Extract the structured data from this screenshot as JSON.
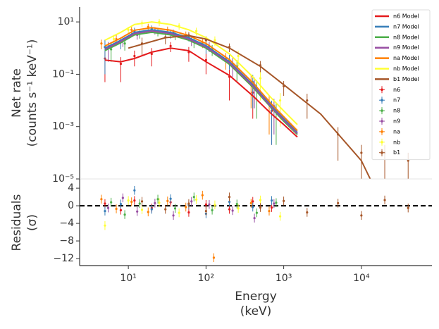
{
  "chart_data": [
    {
      "type": "scatter",
      "ylabel": [
        "Net rate",
        "(counts s⁻¹ keV⁻¹)"
      ],
      "xscale": "log",
      "yscale": "log",
      "xlim": [
        2.36,
        81000
      ],
      "ylim": [
        1e-05,
        37
      ],
      "yticks": [
        {
          "value": 1e-05,
          "label": "10⁻⁵"
        },
        {
          "value": 0.001,
          "label": "10⁻³"
        },
        {
          "value": 0.1,
          "label": "10⁻¹"
        },
        {
          "value": 10,
          "label": "10¹"
        }
      ],
      "legend": "upper right",
      "models": [
        {
          "name": "n6 Model",
          "color": "#e41a1c",
          "x": [
            5,
            8,
            12,
            20,
            35,
            60,
            100,
            200,
            400,
            700,
            1000,
            1500
          ],
          "values": [
            0.35,
            0.3,
            0.4,
            0.7,
            1.0,
            0.8,
            0.3,
            0.09,
            0.015,
            0.003,
            0.0012,
            0.0004
          ]
        },
        {
          "name": "n7 Model",
          "color": "#377eb8",
          "x": [
            5,
            8,
            12,
            20,
            35,
            60,
            100,
            200,
            400,
            700,
            1000,
            1500
          ],
          "values": [
            1,
            2,
            4,
            5,
            4,
            2.5,
            1.25,
            0.3,
            0.04,
            0.006,
            0.002,
            0.0006
          ]
        },
        {
          "name": "n8 Model",
          "color": "#4daf4a",
          "x": [
            5,
            8,
            12,
            20,
            35,
            60,
            100,
            200,
            400,
            700,
            1000,
            1500
          ],
          "values": [
            0.8,
            1.6,
            3.2,
            4,
            3.2,
            2,
            1,
            0.24,
            0.032,
            0.005,
            0.0016,
            0.0005
          ]
        },
        {
          "name": "n9 Model",
          "color": "#984ea3",
          "x": [
            5,
            8,
            12,
            20,
            35,
            60,
            100,
            200,
            400,
            700,
            1000,
            1500
          ],
          "values": [
            0.9,
            1.8,
            3.6,
            4.5,
            3.6,
            2.2,
            1.1,
            0.27,
            0.036,
            0.0054,
            0.0018,
            0.00054
          ]
        },
        {
          "name": "na Model",
          "color": "#ff7f00",
          "x": [
            5,
            8,
            12,
            20,
            35,
            60,
            100,
            200,
            400,
            700,
            1000,
            1500
          ],
          "values": [
            1.2,
            2.4,
            4.8,
            6,
            4.8,
            3,
            1.5,
            0.36,
            0.048,
            0.0072,
            0.0024,
            0.0007
          ]
        },
        {
          "name": "nb Model",
          "color": "#ffff33",
          "x": [
            5,
            8,
            12,
            20,
            35,
            60,
            100,
            200,
            400,
            700,
            1000,
            1500
          ],
          "values": [
            2,
            4,
            8,
            10,
            8,
            5,
            2.5,
            0.6,
            0.08,
            0.012,
            0.004,
            0.0012
          ]
        },
        {
          "name": "b1 Model",
          "color": "#a65628",
          "x": [
            10,
            30,
            60,
            100,
            200,
            500,
            1000,
            3000,
            10000,
            13000
          ],
          "values": [
            1,
            2.5,
            3,
            2.2,
            1,
            0.2,
            0.04,
            0.003,
            5e-05,
            1e-05
          ]
        }
      ],
      "series": [
        {
          "name": "n6",
          "color": "#e41a1c",
          "x": [
            5,
            8,
            12,
            20,
            35,
            60,
            100,
            200,
            400,
            700
          ],
          "values": [
            0.4,
            0.25,
            0.5,
            0.6,
            1.2,
            0.7,
            0.35,
            0.08,
            0.02,
            0.004
          ],
          "errors": [
            0.35,
            0.2,
            0.3,
            0.4,
            0.5,
            0.4,
            0.25,
            0.07,
            0.018,
            0.0038
          ]
        },
        {
          "name": "n7",
          "color": "#377eb8",
          "x": [
            5,
            8,
            12,
            20,
            35,
            60,
            100,
            200,
            400,
            700
          ],
          "values": [
            1.1,
            1.7,
            4.5,
            5.5,
            3.5,
            2.8,
            1.1,
            0.35,
            0.05,
            0.005
          ],
          "errors": [
            1,
            0.8,
            1.5,
            1.8,
            1.2,
            1,
            0.5,
            0.2,
            0.045,
            0.0048
          ]
        },
        {
          "name": "n8",
          "color": "#4daf4a",
          "x": [
            6,
            9,
            14,
            24,
            40,
            70,
            120,
            250,
            450,
            800
          ],
          "values": [
            0.9,
            1.5,
            3.5,
            4.2,
            3,
            1.8,
            0.9,
            0.2,
            0.03,
            0.004
          ],
          "errors": [
            0.6,
            0.7,
            1.2,
            1.4,
            1,
            0.8,
            0.4,
            0.15,
            0.028,
            0.0038
          ]
        },
        {
          "name": "n9",
          "color": "#984ea3",
          "x": [
            5.5,
            8.5,
            13,
            22,
            38,
            65,
            110,
            220,
            420,
            750
          ],
          "values": [
            1,
            1.9,
            3.2,
            4.8,
            3.9,
            2,
            1.2,
            0.25,
            0.04,
            0.006
          ],
          "errors": [
            0.7,
            0.8,
            1.1,
            1.5,
            1.2,
            0.8,
            0.5,
            0.17,
            0.035,
            0.0055
          ]
        },
        {
          "name": "na",
          "color": "#ff7f00",
          "x": [
            4.5,
            7,
            11,
            18,
            32,
            55,
            90,
            180,
            380,
            650
          ],
          "values": [
            1.5,
            2.2,
            5,
            6.5,
            5,
            3.2,
            1.6,
            0.4,
            0.05,
            0.008
          ],
          "errors": [
            0.6,
            0.9,
            1.6,
            2,
            1.6,
            1.1,
            0.6,
            0.25,
            0.045,
            0.0075
          ]
        },
        {
          "name": "nb",
          "color": "#ffff33",
          "x": [
            6.5,
            10,
            15,
            25,
            45,
            75,
            130,
            260,
            500,
            900
          ],
          "values": [
            2.2,
            5,
            9,
            10,
            7,
            4.5,
            2,
            0.5,
            0.07,
            0.01
          ],
          "errors": [
            1,
            1.5,
            2.5,
            3,
            2,
            1.5,
            0.8,
            0.3,
            0.06,
            0.009
          ]
        },
        {
          "name": "b1",
          "color": "#a65628",
          "x": [
            15,
            30,
            60,
            100,
            200,
            500,
            1000,
            2000,
            5000,
            10000,
            20000,
            40000
          ],
          "values": [
            1.5,
            2.6,
            3.1,
            2,
            1.1,
            0.22,
            0.035,
            0.01,
            0.0005,
            0.0001,
            0.0001,
            5e-05
          ],
          "errors": [
            1,
            1.2,
            1,
            0.8,
            0.4,
            0.1,
            0.02,
            0.008,
            0.00045,
            0.0001,
            0.0001,
            5e-05
          ]
        }
      ]
    },
    {
      "type": "residuals",
      "ylabel": [
        "Residuals",
        "(σ)"
      ],
      "xlabel": [
        "Energy",
        "(keV)"
      ],
      "xscale": "log",
      "xlim": [
        2.36,
        81000
      ],
      "ylim": [
        -13.6,
        6.1
      ],
      "xticks": [
        {
          "value": 10,
          "label": "10¹"
        },
        {
          "value": 100,
          "label": "10²"
        },
        {
          "value": 1000,
          "label": "10³"
        },
        {
          "value": 10000,
          "label": "10⁴"
        }
      ],
      "yticks": [
        4,
        0,
        {
          "value": -4,
          "label": "−4"
        },
        {
          "value": -8,
          "label": "−8"
        },
        {
          "value": -12,
          "label": "−12"
        }
      ],
      "hline": 0,
      "series": [
        {
          "name": "n6",
          "color": "#e41a1c",
          "x": [
            5,
            8,
            12,
            20,
            35,
            60,
            100,
            200,
            400,
            700
          ],
          "values": [
            0.5,
            -1,
            1.2,
            -0.5,
            0.8,
            -1.5,
            0.3,
            -0.8,
            1,
            -0.4
          ],
          "errors": [
            1,
            1,
            1,
            1,
            1,
            1,
            1,
            1,
            1,
            1
          ]
        },
        {
          "name": "n7",
          "color": "#377eb8",
          "x": [
            5,
            8,
            12,
            20,
            35,
            60,
            100,
            200,
            400,
            700
          ],
          "values": [
            -1.2,
            0.4,
            3.5,
            -0.8,
            1.6,
            0.2,
            -1.8,
            0.9,
            -0.3,
            1.2
          ],
          "errors": [
            1,
            1,
            1,
            1,
            1,
            1,
            1,
            1,
            1,
            1
          ]
        },
        {
          "name": "n8",
          "color": "#4daf4a",
          "x": [
            6,
            9,
            14,
            24,
            40,
            70,
            120,
            250,
            450,
            800
          ],
          "values": [
            0.8,
            -2,
            0.5,
            1.5,
            -0.6,
            2,
            -1,
            0.4,
            -1.6,
            0.7
          ],
          "errors": [
            1,
            1,
            1,
            1,
            1,
            1,
            1,
            1,
            1,
            1
          ]
        },
        {
          "name": "n9",
          "color": "#984ea3",
          "x": [
            5.5,
            8.5,
            13,
            22,
            38,
            65,
            110,
            220,
            420,
            750
          ],
          "values": [
            -0.5,
            1.8,
            -1.3,
            0.6,
            -2.2,
            1,
            0.3,
            -1.1,
            -2.8,
            0.5
          ],
          "errors": [
            1,
            1,
            1,
            1,
            1,
            1,
            1,
            1,
            1,
            1
          ]
        },
        {
          "name": "na",
          "color": "#ff7f00",
          "x": [
            4.5,
            7,
            11,
            18,
            32,
            55,
            90,
            126,
            380,
            650
          ],
          "values": [
            1.5,
            -0.7,
            0.9,
            -1.4,
            1.1,
            -0.3,
            2.4,
            -11.8,
            0.6,
            -1.2
          ],
          "errors": [
            1,
            1,
            1,
            1,
            1,
            1,
            1,
            1,
            1,
            1
          ]
        },
        {
          "name": "nb",
          "color": "#ffff33",
          "x": [
            5,
            10,
            15,
            25,
            45,
            75,
            130,
            260,
            500,
            900
          ],
          "values": [
            -4.5,
            1.2,
            -0.9,
            0.7,
            -1.6,
            1.4,
            0.2,
            -0.6,
            1.3,
            -2.4
          ],
          "errors": [
            1,
            1,
            1,
            1,
            1,
            1,
            1,
            1,
            1,
            1
          ]
        },
        {
          "name": "b1",
          "color": "#a65628",
          "x": [
            15,
            30,
            60,
            100,
            200,
            500,
            1000,
            2000,
            5000,
            10000,
            20000,
            40000
          ],
          "values": [
            1,
            -0.8,
            0.5,
            -1.2,
            2,
            -0.4,
            1.1,
            -1.5,
            0.6,
            -2.2,
            1.3,
            -0.5
          ],
          "errors": [
            1,
            1,
            1,
            1,
            1,
            1,
            1,
            1,
            1,
            1,
            1,
            1
          ]
        }
      ]
    }
  ]
}
